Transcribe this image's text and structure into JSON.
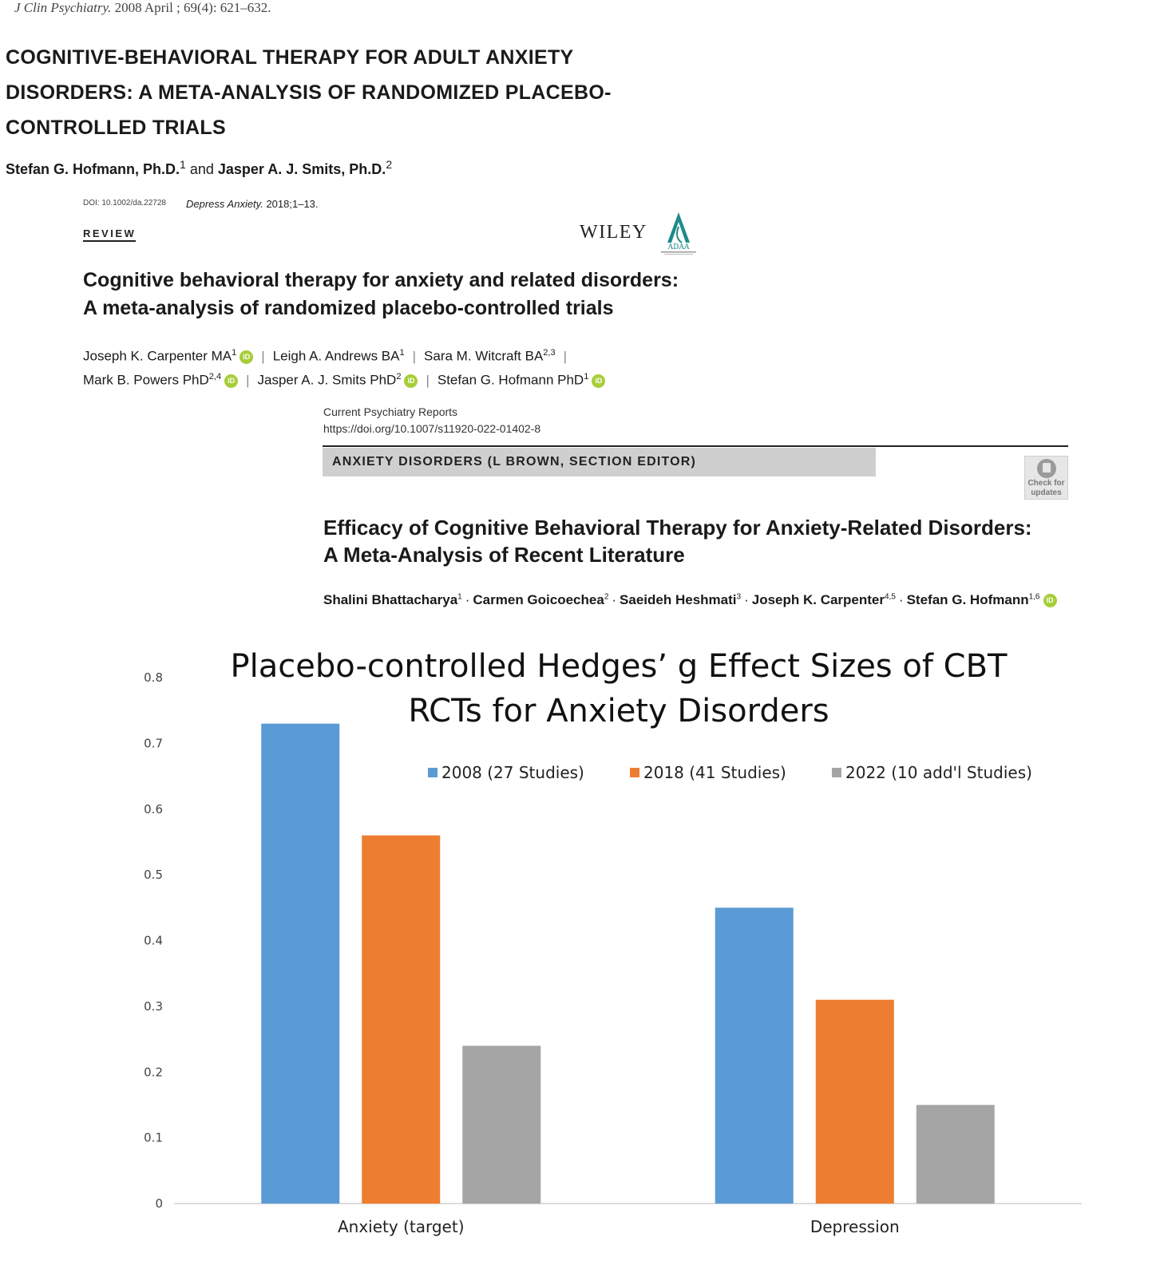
{
  "paper1": {
    "journal": "J Clin Psychiatry.",
    "citation": "2008 April ; 69(4): 621–632.",
    "title_lines": [
      "COGNITIVE-BEHAVIORAL THERAPY FOR ADULT ANXIETY",
      "DISORDERS: A META-ANALYSIS OF RANDOMIZED PLACEBO-",
      "CONTROLLED TRIALS"
    ],
    "author1": "Stefan G. Hofmann, Ph.D.",
    "author1_sup": "1",
    "conj": "and",
    "author2": "Jasper A. J. Smits, Ph.D.",
    "author2_sup": "2"
  },
  "paper2": {
    "doi": "DOI: 10.1002/da.22728",
    "journal": "Depress Anxiety.",
    "citation": "2018;1–13.",
    "section": "REVIEW",
    "publisher": "WILEY",
    "society": "ADAA",
    "title_lines": [
      "Cognitive behavioral therapy for anxiety and related disorders:",
      "A meta-analysis of randomized placebo-controlled trials"
    ],
    "authors_line1": [
      {
        "name": "Joseph K. Carpenter MA",
        "sup": "1",
        "orcid": true
      },
      {
        "name": "Leigh A. Andrews BA",
        "sup": "1",
        "orcid": false
      },
      {
        "name": "Sara M. Witcraft BA",
        "sup": "2,3",
        "orcid": false
      }
    ],
    "authors_line2": [
      {
        "name": "Mark B. Powers PhD",
        "sup": "2,4",
        "orcid": true
      },
      {
        "name": "Jasper A. J. Smits PhD",
        "sup": "2",
        "orcid": true
      },
      {
        "name": "Stefan G. Hofmann PhD",
        "sup": "1",
        "orcid": true
      }
    ],
    "orcid_label": "iD"
  },
  "paper3": {
    "journal": "Current Psychiatry Reports",
    "doi": "https://doi.org/10.1007/s11920-022-01402-8",
    "section": "ANXIETY DISORDERS (L BROWN, SECTION EDITOR)",
    "check_label_1": "Check for",
    "check_label_2": "updates",
    "title_lines": [
      "Efficacy of Cognitive Behavioral Therapy for Anxiety-Related Disorders:",
      "A Meta-Analysis of Recent Literature"
    ],
    "authors": [
      {
        "name": "Shalini Bhattacharya",
        "sup": "1"
      },
      {
        "name": "Carmen Goicoechea",
        "sup": "2"
      },
      {
        "name": "Saeideh Heshmati",
        "sup": "3"
      },
      {
        "name": "Joseph K. Carpenter",
        "sup": "4,5"
      },
      {
        "name": "Stefan G. Hofmann",
        "sup": "1,6"
      }
    ]
  },
  "chart_data": {
    "type": "bar",
    "title_lines": [
      "Placebo-controlled Hedges’ g Effect Sizes of CBT",
      "RCTs for Anxiety Disorders"
    ],
    "categories": [
      "Anxiety (target)",
      "Depression"
    ],
    "series": [
      {
        "name": "2008 (27 Studies)",
        "color": "#5b9bd5",
        "values": [
          0.73,
          0.45
        ]
      },
      {
        "name": "2018 (41 Studies)",
        "color": "#ed7d31",
        "values": [
          0.56,
          0.31
        ]
      },
      {
        "name": "2022 (10 add'l Studies)",
        "color": "#a5a5a5",
        "values": [
          0.24,
          0.15
        ]
      }
    ],
    "ylim": [
      0,
      0.8
    ],
    "yticks": [
      "0",
      "0.1",
      "0.2",
      "0.3",
      "0.4",
      "0.5",
      "0.6",
      "0.7",
      "0.8"
    ],
    "xlabel": "",
    "ylabel": "",
    "grid": false,
    "legend_position": "top-right"
  }
}
